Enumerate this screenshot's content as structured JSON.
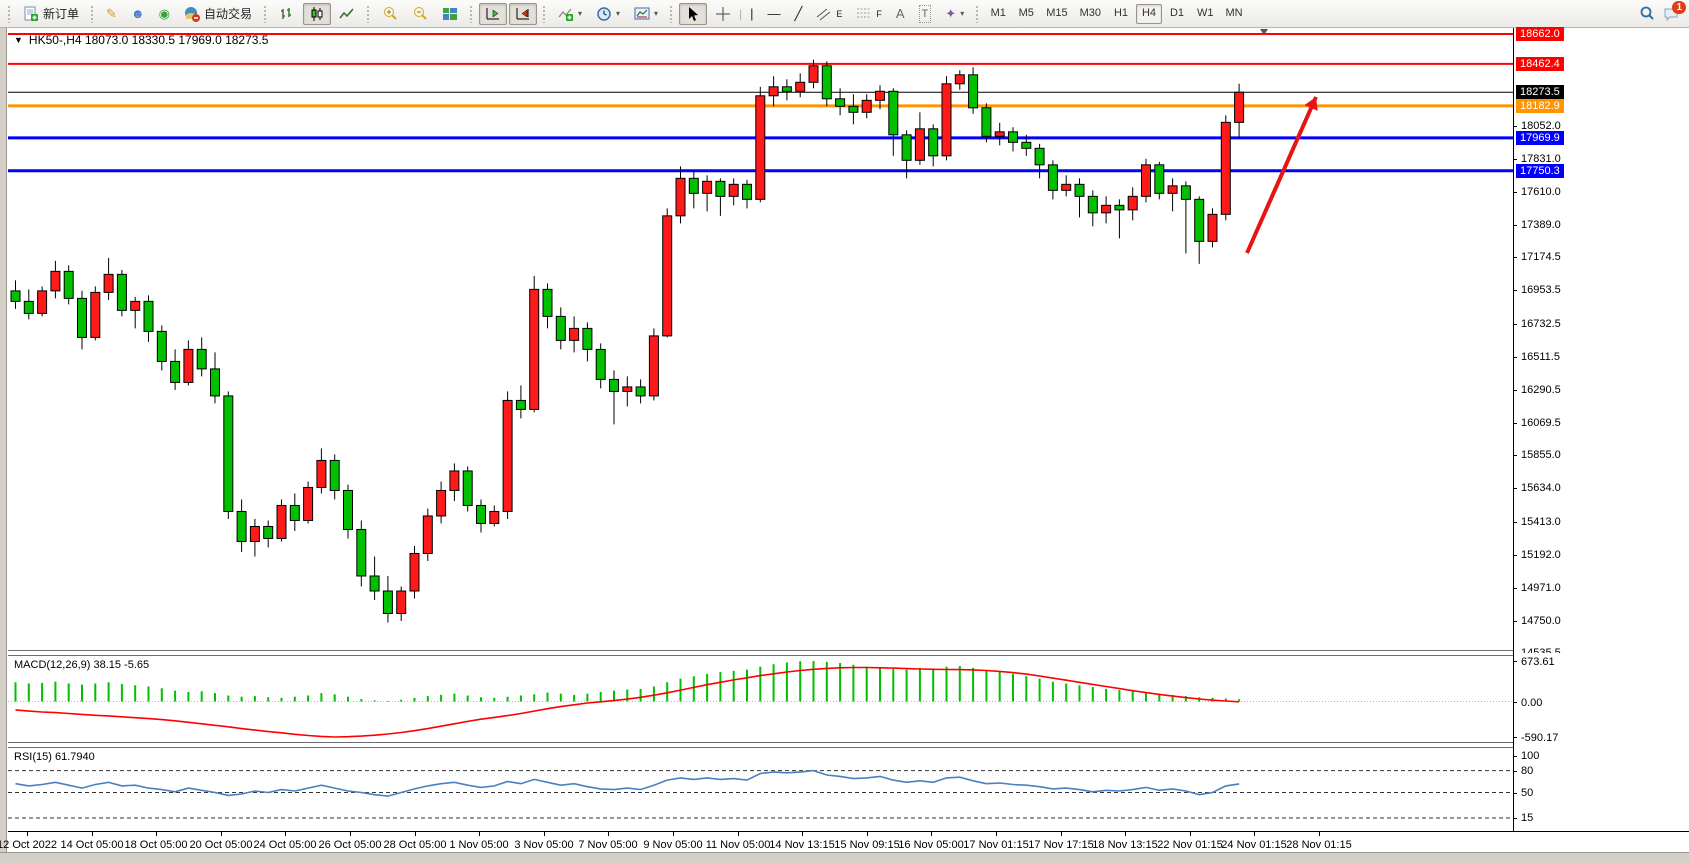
{
  "toolbar": {
    "new_order_label": "新订单",
    "auto_trading_label": "自动交易",
    "timeframes": [
      "M1",
      "M5",
      "M15",
      "M30",
      "H1",
      "H4",
      "D1",
      "W1",
      "MN"
    ],
    "active_timeframe": "H4",
    "chat_badge": "1",
    "glyphs": {
      "pencil": "✎",
      "profile": "☻",
      "signal": "◉",
      "zoom_in": "+",
      "zoom_out": "−",
      "vline": "|",
      "hline": "—",
      "tline": "╱",
      "channel": "E",
      "fibo": "F",
      "text": "A",
      "label": "T",
      "arrows": "✦",
      "caret": "▾",
      "tri_down": "▼"
    }
  },
  "chart": {
    "title": "HK50-,H4  18073.0 18330.5 17969.0 18273.5",
    "symbol": "HK50-",
    "period": "H4",
    "macd_label": "MACD(12,26,9) 38.15 -5.65",
    "rsi_label": "RSI(15) 61.7940"
  },
  "colors": {
    "up": "#ff1a1a",
    "down": "#00c000",
    "wick": "#000000",
    "macd_hist": "#00c000",
    "macd_signal": "#ff0000",
    "rsi_line": "#4a7fc1",
    "level_red": "#ff0000",
    "level_orange": "#ff9500",
    "level_blue": "#0000ff",
    "current_price": "#000000",
    "arrow": "#e81313"
  },
  "chart_data": {
    "type": "candlestick",
    "symbol": "HK50-",
    "timeframe": "H4",
    "ohlc_current": {
      "open": 18073.0,
      "high": 18330.5,
      "low": 17969.0,
      "close": 18273.5
    },
    "price_axis_ticks": [
      18052.0,
      17831.0,
      17610.0,
      17389.0,
      17174.5,
      16953.5,
      16732.5,
      16511.5,
      16290.5,
      16069.5,
      15855.0,
      15634.0,
      15413.0,
      15192.0,
      14971.0,
      14750.0,
      14535.5
    ],
    "levels": [
      {
        "price": 18662.0,
        "color": "#ff0000",
        "width": 2,
        "badge": "18662.0"
      },
      {
        "price": 18462.4,
        "color": "#ff0000",
        "width": 2,
        "badge": "18462.4"
      },
      {
        "price": 18273.5,
        "color": "#000000",
        "width": 1,
        "badge": "18273.5",
        "current": true
      },
      {
        "price": 18182.9,
        "color": "#ff9500",
        "width": 3,
        "badge": "18182.9"
      },
      {
        "price": 17969.9,
        "color": "#0000ff",
        "width": 3,
        "badge": "17969.9"
      },
      {
        "price": 17750.3,
        "color": "#0000ff",
        "width": 3,
        "badge": "17750.3"
      }
    ],
    "x_labels": [
      "12 Oct 2022",
      "14 Oct 05:00",
      "18 Oct 05:00",
      "20 Oct 05:00",
      "24 Oct 05:00",
      "26 Oct 05:00",
      "28 Oct 05:00",
      "1 Nov 05:00",
      "3 Nov 05:00",
      "7 Nov 05:00",
      "9 Nov 05:00",
      "11 Nov 05:00",
      "14 Nov 13:15",
      "15 Nov 09:15",
      "16 Nov 05:00",
      "17 Nov 01:15",
      "17 Nov 17:15",
      "18 Nov 13:15",
      "22 Nov 01:15",
      "24 Nov 01:15",
      "28 Nov 01:15"
    ],
    "candles": [
      [
        16950,
        17020,
        16830,
        16880
      ],
      [
        16880,
        16960,
        16760,
        16800
      ],
      [
        16800,
        16980,
        16780,
        16950
      ],
      [
        16950,
        17150,
        16900,
        17080
      ],
      [
        17080,
        17120,
        16860,
        16900
      ],
      [
        16900,
        16950,
        16560,
        16640
      ],
      [
        16640,
        16980,
        16620,
        16940
      ],
      [
        16940,
        17170,
        16890,
        17060
      ],
      [
        17060,
        17090,
        16780,
        16820
      ],
      [
        16820,
        16910,
        16700,
        16880
      ],
      [
        16880,
        16920,
        16610,
        16680
      ],
      [
        16680,
        16720,
        16420,
        16480
      ],
      [
        16480,
        16560,
        16290,
        16340
      ],
      [
        16340,
        16620,
        16320,
        16560
      ],
      [
        16560,
        16640,
        16380,
        16430
      ],
      [
        16430,
        16540,
        16200,
        16250
      ],
      [
        16250,
        16280,
        15430,
        15480
      ],
      [
        15480,
        15560,
        15210,
        15280
      ],
      [
        15280,
        15430,
        15180,
        15380
      ],
      [
        15380,
        15420,
        15240,
        15300
      ],
      [
        15300,
        15560,
        15280,
        15520
      ],
      [
        15520,
        15600,
        15350,
        15420
      ],
      [
        15420,
        15680,
        15400,
        15640
      ],
      [
        15640,
        15900,
        15600,
        15820
      ],
      [
        15820,
        15860,
        15560,
        15620
      ],
      [
        15620,
        15660,
        15300,
        15360
      ],
      [
        15360,
        15420,
        14980,
        15050
      ],
      [
        15050,
        15180,
        14890,
        14950
      ],
      [
        14950,
        15050,
        14740,
        14800
      ],
      [
        14800,
        14980,
        14750,
        14950
      ],
      [
        14950,
        15250,
        14900,
        15200
      ],
      [
        15200,
        15500,
        15150,
        15450
      ],
      [
        15450,
        15680,
        15400,
        15620
      ],
      [
        15620,
        15800,
        15550,
        15750
      ],
      [
        15750,
        15780,
        15480,
        15520
      ],
      [
        15520,
        15560,
        15340,
        15400
      ],
      [
        15400,
        15520,
        15380,
        15480
      ],
      [
        15480,
        16280,
        15430,
        16220
      ],
      [
        16220,
        16320,
        16100,
        16160
      ],
      [
        16160,
        17050,
        16140,
        16960
      ],
      [
        16960,
        17000,
        16700,
        16780
      ],
      [
        16780,
        16840,
        16560,
        16620
      ],
      [
        16620,
        16780,
        16540,
        16700
      ],
      [
        16700,
        16740,
        16480,
        16560
      ],
      [
        16560,
        16600,
        16300,
        16360
      ],
      [
        16360,
        16420,
        16060,
        16280
      ],
      [
        16280,
        16380,
        16180,
        16310
      ],
      [
        16310,
        16360,
        16200,
        16250
      ],
      [
        16250,
        16700,
        16220,
        16650
      ],
      [
        16650,
        17500,
        16640,
        17450
      ],
      [
        17450,
        17780,
        17400,
        17700
      ],
      [
        17700,
        17750,
        17500,
        17600
      ],
      [
        17600,
        17720,
        17480,
        17680
      ],
      [
        17680,
        17700,
        17450,
        17580
      ],
      [
        17580,
        17700,
        17520,
        17660
      ],
      [
        17660,
        17690,
        17500,
        17560
      ],
      [
        17560,
        18310,
        17540,
        18250
      ],
      [
        18250,
        18380,
        18180,
        18310
      ],
      [
        18310,
        18360,
        18220,
        18280
      ],
      [
        18280,
        18400,
        18240,
        18340
      ],
      [
        18340,
        18490,
        18300,
        18450
      ],
      [
        18450,
        18480,
        18180,
        18230
      ],
      [
        18230,
        18300,
        18120,
        18180
      ],
      [
        18180,
        18260,
        18060,
        18140
      ],
      [
        18140,
        18260,
        18100,
        18220
      ],
      [
        18220,
        18320,
        18160,
        18280
      ],
      [
        18280,
        18300,
        17850,
        17990
      ],
      [
        17990,
        18020,
        17700,
        17820
      ],
      [
        17820,
        18140,
        17790,
        18030
      ],
      [
        18030,
        18060,
        17780,
        17850
      ],
      [
        17850,
        18380,
        17820,
        18330
      ],
      [
        18330,
        18420,
        18290,
        18390
      ],
      [
        18390,
        18440,
        18130,
        18170
      ],
      [
        18170,
        18200,
        17940,
        17980
      ],
      [
        17980,
        18070,
        17920,
        18010
      ],
      [
        18010,
        18040,
        17880,
        17940
      ],
      [
        17940,
        17990,
        17850,
        17900
      ],
      [
        17900,
        17930,
        17700,
        17790
      ],
      [
        17790,
        17820,
        17560,
        17620
      ],
      [
        17620,
        17720,
        17580,
        17660
      ],
      [
        17660,
        17700,
        17440,
        17580
      ],
      [
        17580,
        17620,
        17380,
        17470
      ],
      [
        17470,
        17580,
        17400,
        17520
      ],
      [
        17520,
        17560,
        17300,
        17490
      ],
      [
        17490,
        17640,
        17420,
        17580
      ],
      [
        17580,
        17830,
        17540,
        17790
      ],
      [
        17790,
        17810,
        17560,
        17600
      ],
      [
        17600,
        17700,
        17480,
        17650
      ],
      [
        17650,
        17680,
        17200,
        17560
      ],
      [
        17560,
        17580,
        17130,
        17280
      ],
      [
        17280,
        17500,
        17240,
        17460
      ],
      [
        17460,
        18120,
        17420,
        18073
      ],
      [
        18073,
        18330.5,
        17969,
        18273.5
      ]
    ],
    "macd": {
      "params": "12,26,9",
      "last_main": 38.15,
      "last_signal": -5.65,
      "range": [
        -590.17,
        673.61
      ],
      "axis_labels": [
        "673.61",
        "0.00",
        "-590.17"
      ],
      "histogram": [
        320,
        300,
        310,
        330,
        300,
        280,
        300,
        320,
        290,
        270,
        250,
        220,
        180,
        160,
        170,
        140,
        100,
        80,
        90,
        70,
        60,
        80,
        100,
        140,
        120,
        80,
        40,
        20,
        10,
        30,
        60,
        90,
        110,
        130,
        100,
        70,
        60,
        80,
        100,
        120,
        150,
        130,
        110,
        130,
        160,
        180,
        200,
        210,
        250,
        320,
        380,
        420,
        460,
        490,
        510,
        530,
        580,
        620,
        650,
        670,
        673,
        660,
        640,
        610,
        580,
        560,
        540,
        530,
        560,
        540,
        580,
        590,
        560,
        520,
        490,
        460,
        420,
        380,
        330,
        300,
        270,
        240,
        210,
        190,
        170,
        150,
        130,
        110,
        90,
        70,
        60,
        50,
        38.15
      ],
      "signal": [
        -140,
        -160,
        -175,
        -185,
        -200,
        -215,
        -230,
        -240,
        -255,
        -270,
        -285,
        -300,
        -320,
        -345,
        -370,
        -395,
        -420,
        -450,
        -475,
        -500,
        -520,
        -545,
        -565,
        -580,
        -590,
        -585,
        -575,
        -560,
        -540,
        -515,
        -485,
        -450,
        -410,
        -370,
        -330,
        -295,
        -265,
        -235,
        -200,
        -160,
        -120,
        -85,
        -55,
        -25,
        -5,
        15,
        40,
        70,
        105,
        145,
        190,
        235,
        280,
        320,
        360,
        395,
        430,
        460,
        490,
        515,
        535,
        550,
        560,
        565,
        565,
        560,
        555,
        548,
        540,
        535,
        532,
        530,
        525,
        515,
        500,
        480,
        455,
        425,
        390,
        355,
        320,
        285,
        250,
        215,
        180,
        148,
        118,
        90,
        65,
        42,
        22,
        8,
        -5.65
      ]
    },
    "rsi": {
      "period": 15,
      "last": 61.794,
      "scale_labels": [
        "100",
        "80",
        "50",
        "15"
      ],
      "dashed_levels": [
        80,
        50,
        15
      ],
      "values": [
        62,
        59,
        61,
        64,
        60,
        56,
        61,
        64,
        59,
        60,
        56,
        54,
        51,
        56,
        53,
        50,
        46,
        48,
        52,
        50,
        54,
        52,
        56,
        60,
        56,
        52,
        50,
        47,
        45,
        50,
        55,
        59,
        62,
        64,
        60,
        57,
        59,
        65,
        62,
        68,
        64,
        60,
        62,
        58,
        55,
        54,
        56,
        54,
        60,
        67,
        70,
        68,
        70,
        68,
        69,
        67,
        76,
        78,
        77,
        78,
        80,
        74,
        72,
        69,
        70,
        72,
        67,
        64,
        66,
        64,
        70,
        71,
        66,
        62,
        63,
        61,
        60,
        58,
        55,
        56,
        54,
        51,
        53,
        52,
        54,
        57,
        53,
        55,
        52,
        47,
        50,
        59,
        61.79
      ]
    },
    "annotation_arrow": {
      "from": [
        1247,
        253
      ],
      "to": [
        1316,
        97
      ]
    }
  }
}
